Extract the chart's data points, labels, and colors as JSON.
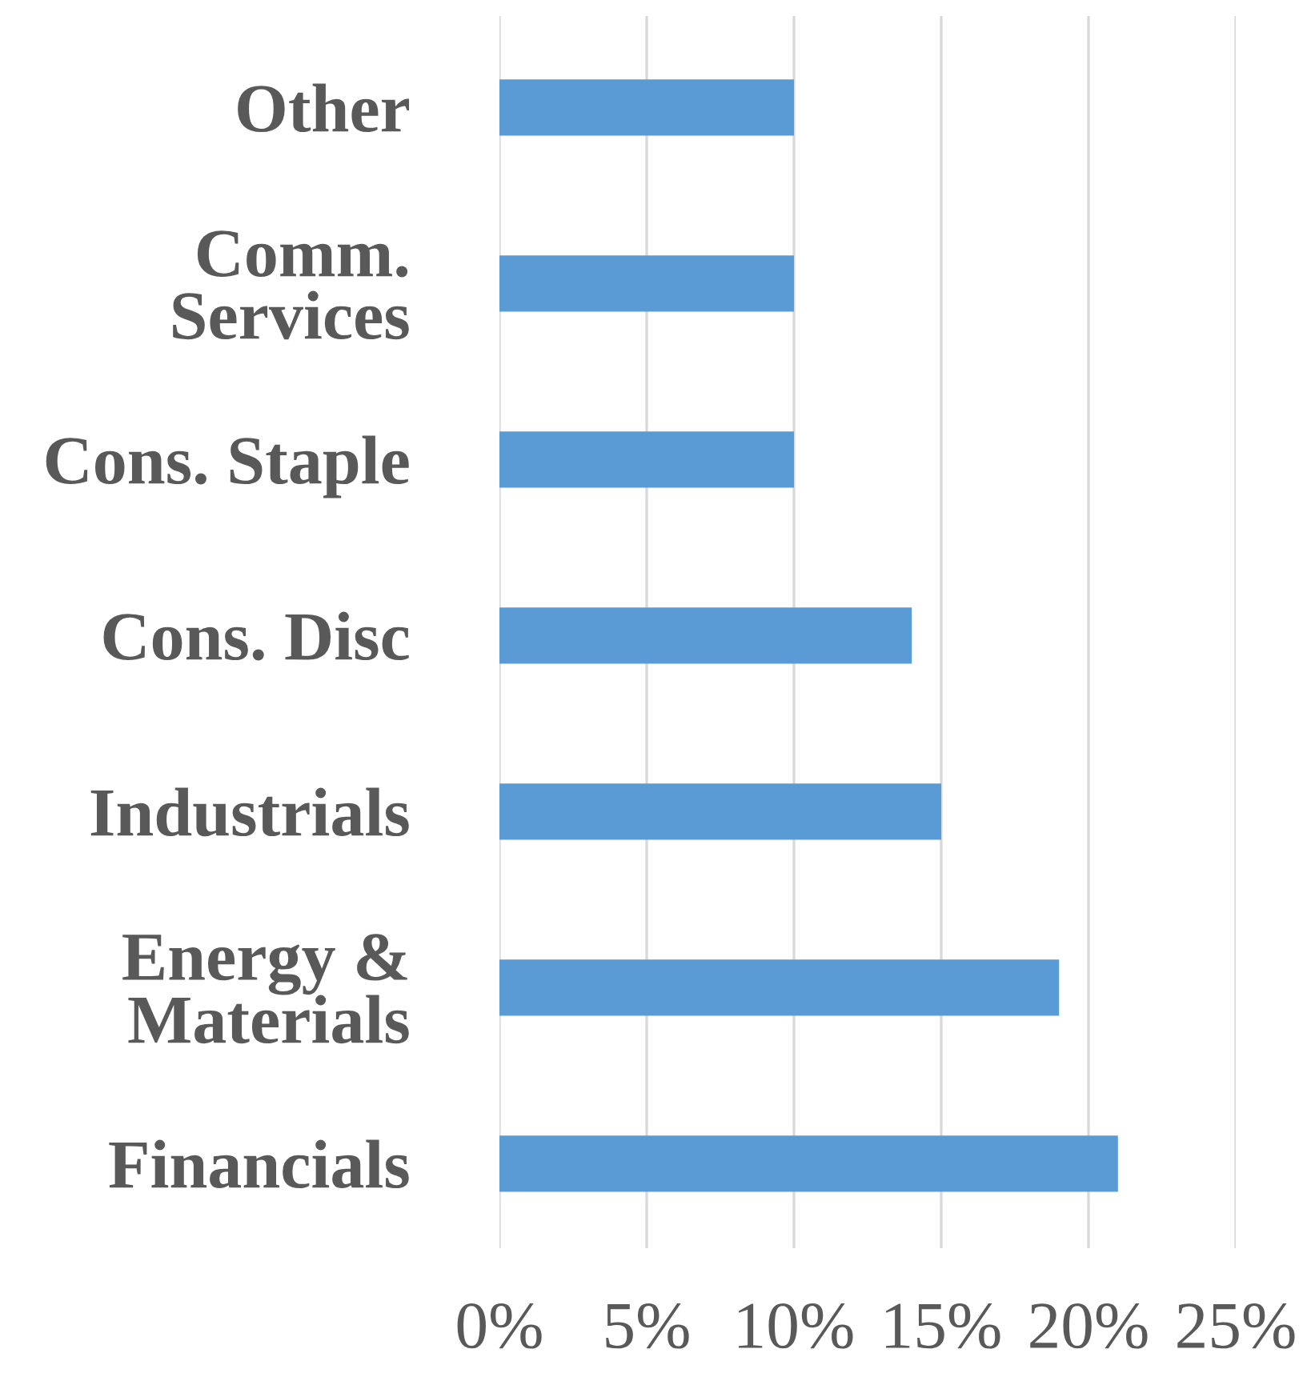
{
  "chart_data": {
    "type": "bar",
    "orientation": "horizontal",
    "categories": [
      "Other",
      "Comm.\nServices",
      "Cons. Staple",
      "Cons. Disc",
      "Industrials",
      "Energy &\nMaterials",
      "Financials"
    ],
    "values": [
      10,
      10,
      10,
      14,
      15,
      19,
      21
    ],
    "color": "#5b9bd5",
    "xlim": [
      0,
      25
    ],
    "xticks": [
      {
        "value": 0,
        "label": "0%"
      },
      {
        "value": 5,
        "label": "5%"
      },
      {
        "value": 10,
        "label": "10%"
      },
      {
        "value": 15,
        "label": "15%"
      },
      {
        "value": 20,
        "label": "20%"
      },
      {
        "value": 25,
        "label": "25%"
      }
    ],
    "grid": "x",
    "legend": false
  }
}
